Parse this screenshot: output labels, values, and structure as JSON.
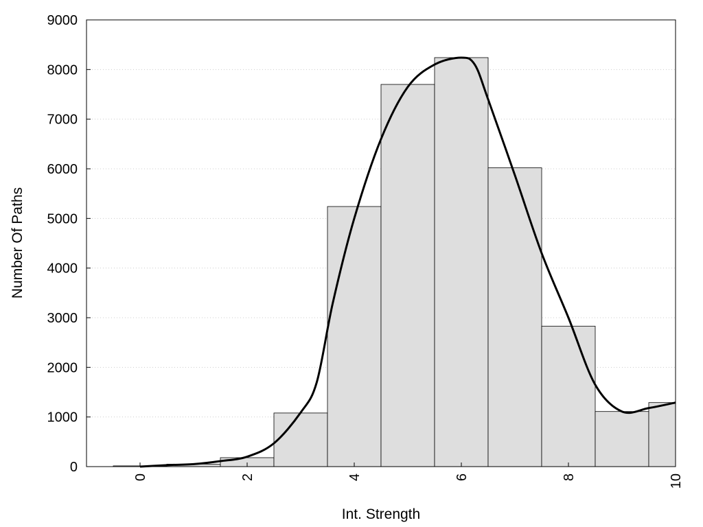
{
  "chart_data": {
    "type": "bar",
    "title": "",
    "xlabel": "Int. Strength",
    "ylabel": "Number Of Paths",
    "xlim": [
      -1,
      10
    ],
    "ylim": [
      0,
      9000
    ],
    "x_ticks": [
      0,
      2,
      4,
      6,
      8,
      10
    ],
    "y_ticks": [
      0,
      1000,
      2000,
      3000,
      4000,
      5000,
      6000,
      7000,
      8000,
      9000
    ],
    "grid": "horizontal dotted",
    "legend": "none",
    "bar_width": 1,
    "bars": [
      {
        "x": 0,
        "value": 15
      },
      {
        "x": 1,
        "value": 50
      },
      {
        "x": 2,
        "value": 180
      },
      {
        "x": 3,
        "value": 1080
      },
      {
        "x": 4,
        "value": 5240
      },
      {
        "x": 5,
        "value": 7700
      },
      {
        "x": 6,
        "value": 8240
      },
      {
        "x": 7,
        "value": 6020
      },
      {
        "x": 8,
        "value": 2830
      },
      {
        "x": 9,
        "value": 1110
      },
      {
        "x": 10,
        "value": 1290
      }
    ],
    "curve": {
      "x": [
        0,
        0.5,
        1,
        1.5,
        2,
        2.5,
        3,
        3.3,
        3.6,
        4,
        4.5,
        5,
        5.5,
        6,
        6.25,
        6.5,
        7,
        7.5,
        8,
        8.5,
        9,
        9.5,
        10
      ],
      "y": [
        0,
        30,
        50,
        110,
        200,
        470,
        1090,
        1700,
        3300,
        5000,
        6600,
        7650,
        8100,
        8240,
        8100,
        7400,
        5870,
        4300,
        3000,
        1650,
        1110,
        1180,
        1290
      ]
    },
    "colors": {
      "bar_fill": "#dedede",
      "bar_stroke": "#000000",
      "curve": "#000000",
      "grid": "#cccccc"
    }
  }
}
